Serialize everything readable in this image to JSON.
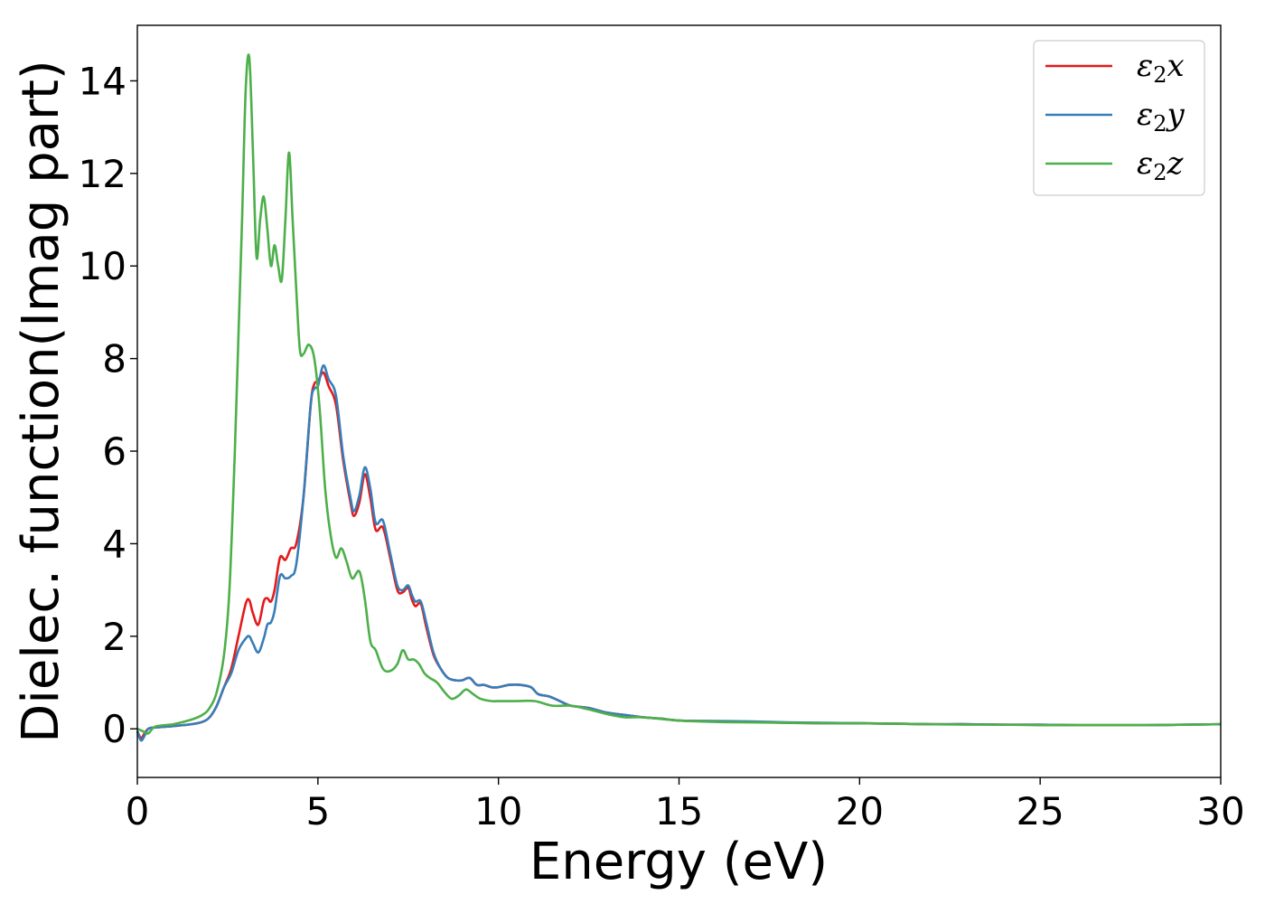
{
  "chart_data": {
    "type": "line",
    "title": "",
    "xlabel": "Energy (eV)",
    "ylabel": "Dielec. function(Imag part)",
    "xlim": [
      0,
      30
    ],
    "ylim": [
      -1.05,
      15.2
    ],
    "xticks": [
      0,
      5,
      10,
      15,
      20,
      25,
      30
    ],
    "yticks": [
      0,
      2,
      4,
      6,
      8,
      10,
      12,
      14
    ],
    "grid": false,
    "legend_position": "top-right",
    "series": [
      {
        "name": "ε₂x",
        "legend_base": "ε",
        "legend_sub": "2",
        "legend_suffix": "x",
        "color": "#e41a1c",
        "x": [
          0,
          0.1,
          0.2,
          0.3,
          0.5,
          1.0,
          1.5,
          1.8,
          2.0,
          2.2,
          2.4,
          2.6,
          2.8,
          3.0,
          3.1,
          3.2,
          3.35,
          3.5,
          3.6,
          3.7,
          3.8,
          3.95,
          4.1,
          4.25,
          4.4,
          4.6,
          4.8,
          4.9,
          5.0,
          5.15,
          5.3,
          5.5,
          5.7,
          5.9,
          6.0,
          6.15,
          6.3,
          6.45,
          6.6,
          6.8,
          7.0,
          7.2,
          7.35,
          7.5,
          7.6,
          7.7,
          7.85,
          8.0,
          8.2,
          8.4,
          8.6,
          8.8,
          9.0,
          9.2,
          9.4,
          9.6,
          9.8,
          10.0,
          10.3,
          10.6,
          10.9,
          11.1,
          11.4,
          11.7,
          12.0,
          12.5,
          13.0,
          13.5,
          14.0,
          14.5,
          15.0,
          16.0,
          17.0,
          18.0,
          19.0,
          20.0,
          21.0,
          22.0,
          23.0,
          24.0,
          25.0,
          26.0,
          27.0,
          28.0,
          29.0,
          30.0
        ],
        "y": [
          -0.05,
          -0.2,
          -0.1,
          0.0,
          0.03,
          0.06,
          0.1,
          0.15,
          0.25,
          0.5,
          0.9,
          1.3,
          2.0,
          2.7,
          2.78,
          2.5,
          2.25,
          2.75,
          2.82,
          2.75,
          3.0,
          3.7,
          3.65,
          3.9,
          4.0,
          5.0,
          7.0,
          7.45,
          7.5,
          7.7,
          7.4,
          7.0,
          5.8,
          4.9,
          4.6,
          4.9,
          5.5,
          5.0,
          4.3,
          4.35,
          3.7,
          3.0,
          2.95,
          3.05,
          2.8,
          2.65,
          2.7,
          2.2,
          1.6,
          1.3,
          1.1,
          1.05,
          1.05,
          1.1,
          0.95,
          0.95,
          0.9,
          0.9,
          0.95,
          0.95,
          0.9,
          0.75,
          0.7,
          0.6,
          0.5,
          0.45,
          0.35,
          0.3,
          0.25,
          0.22,
          0.18,
          0.16,
          0.15,
          0.13,
          0.12,
          0.12,
          0.11,
          0.1,
          0.1,
          0.09,
          0.09,
          0.08,
          0.08,
          0.08,
          0.09,
          0.1
        ]
      },
      {
        "name": "ε₂y",
        "legend_base": "ε",
        "legend_sub": "2",
        "legend_suffix": "y",
        "color": "#377eb8",
        "x": [
          0,
          0.1,
          0.2,
          0.3,
          0.5,
          1.0,
          1.5,
          1.8,
          2.0,
          2.2,
          2.4,
          2.6,
          2.8,
          3.0,
          3.1,
          3.2,
          3.35,
          3.5,
          3.6,
          3.7,
          3.8,
          3.95,
          4.1,
          4.25,
          4.4,
          4.6,
          4.8,
          4.9,
          5.0,
          5.15,
          5.3,
          5.5,
          5.7,
          5.9,
          6.0,
          6.15,
          6.3,
          6.45,
          6.6,
          6.8,
          7.0,
          7.2,
          7.35,
          7.5,
          7.6,
          7.7,
          7.85,
          8.0,
          8.2,
          8.4,
          8.6,
          8.8,
          9.0,
          9.2,
          9.4,
          9.6,
          9.8,
          10.0,
          10.3,
          10.6,
          10.9,
          11.1,
          11.4,
          11.7,
          12.0,
          12.5,
          13.0,
          13.5,
          14.0,
          14.5,
          15.0,
          16.0,
          17.0,
          18.0,
          19.0,
          20.0,
          21.0,
          22.0,
          23.0,
          24.0,
          25.0,
          26.0,
          27.0,
          28.0,
          29.0,
          30.0
        ],
        "y": [
          -0.05,
          -0.25,
          -0.15,
          0.0,
          0.03,
          0.06,
          0.1,
          0.15,
          0.25,
          0.5,
          0.9,
          1.2,
          1.7,
          1.95,
          2.0,
          1.85,
          1.65,
          1.95,
          2.25,
          2.3,
          2.55,
          3.3,
          3.25,
          3.3,
          3.55,
          5.0,
          7.0,
          7.35,
          7.4,
          7.85,
          7.55,
          7.2,
          5.9,
          5.0,
          4.7,
          5.05,
          5.65,
          5.2,
          4.45,
          4.5,
          3.8,
          3.1,
          3.0,
          3.1,
          2.9,
          2.75,
          2.75,
          2.3,
          1.65,
          1.3,
          1.1,
          1.05,
          1.05,
          1.1,
          0.95,
          0.95,
          0.9,
          0.9,
          0.95,
          0.95,
          0.9,
          0.75,
          0.7,
          0.6,
          0.5,
          0.45,
          0.35,
          0.3,
          0.25,
          0.22,
          0.18,
          0.17,
          0.16,
          0.14,
          0.13,
          0.12,
          0.11,
          0.1,
          0.1,
          0.09,
          0.09,
          0.08,
          0.08,
          0.08,
          0.09,
          0.1
        ]
      },
      {
        "name": "ε₂z",
        "legend_base": "ε",
        "legend_sub": "2",
        "legend_suffix": "z",
        "color": "#4daf4a",
        "x": [
          0,
          0.15,
          0.3,
          0.5,
          1.0,
          1.5,
          1.8,
          2.0,
          2.2,
          2.4,
          2.55,
          2.7,
          2.8,
          2.9,
          3.0,
          3.1,
          3.2,
          3.3,
          3.4,
          3.5,
          3.6,
          3.7,
          3.8,
          3.9,
          4.0,
          4.1,
          4.2,
          4.3,
          4.4,
          4.5,
          4.6,
          4.75,
          4.9,
          5.05,
          5.2,
          5.35,
          5.5,
          5.65,
          5.8,
          5.95,
          6.15,
          6.3,
          6.45,
          6.6,
          6.8,
          7.0,
          7.2,
          7.35,
          7.5,
          7.65,
          7.8,
          7.95,
          8.1,
          8.3,
          8.5,
          8.7,
          8.9,
          9.1,
          9.3,
          9.5,
          9.8,
          10.0,
          10.5,
          11.0,
          11.5,
          12.0,
          12.5,
          13.0,
          13.5,
          14.0,
          15.0,
          16.0,
          17.0,
          18.0,
          19.0,
          20.0,
          21.0,
          22.0,
          23.0,
          24.0,
          25.0,
          26.0,
          27.0,
          28.0,
          29.0,
          30.0
        ],
        "y": [
          0.0,
          -0.05,
          -0.1,
          0.05,
          0.1,
          0.2,
          0.3,
          0.45,
          0.8,
          1.6,
          3.0,
          6.0,
          8.5,
          11.0,
          13.8,
          14.5,
          12.5,
          10.2,
          11.0,
          11.5,
          10.8,
          10.0,
          10.45,
          10.0,
          9.7,
          11.0,
          12.45,
          11.0,
          9.5,
          8.2,
          8.1,
          8.3,
          8.0,
          6.9,
          5.2,
          4.2,
          3.7,
          3.9,
          3.6,
          3.25,
          3.4,
          2.8,
          1.9,
          1.7,
          1.3,
          1.25,
          1.4,
          1.7,
          1.5,
          1.5,
          1.4,
          1.2,
          1.1,
          1.0,
          0.8,
          0.65,
          0.72,
          0.85,
          0.75,
          0.65,
          0.6,
          0.6,
          0.6,
          0.6,
          0.5,
          0.5,
          0.42,
          0.32,
          0.25,
          0.25,
          0.18,
          0.15,
          0.14,
          0.13,
          0.12,
          0.12,
          0.11,
          0.1,
          0.09,
          0.09,
          0.08,
          0.08,
          0.08,
          0.08,
          0.09,
          0.1
        ]
      }
    ]
  }
}
